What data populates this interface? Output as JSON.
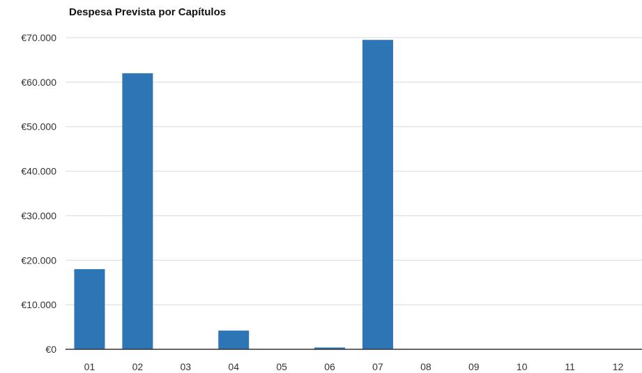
{
  "chart_data": {
    "type": "bar",
    "title": "Despesa Prevista por Capítulos",
    "xlabel": "",
    "ylabel": "",
    "categories": [
      "01",
      "02",
      "03",
      "04",
      "05",
      "06",
      "07",
      "08",
      "09",
      "10",
      "11",
      "12"
    ],
    "values": [
      18000,
      62000,
      0,
      4200,
      0,
      400,
      69500,
      0,
      0,
      0,
      0,
      0
    ],
    "ylim": [
      0,
      70000
    ],
    "y_ticks": [
      0,
      10000,
      20000,
      30000,
      40000,
      50000,
      60000,
      70000
    ],
    "y_tick_labels": [
      "€0",
      "€10.000",
      "€20.000",
      "€30.000",
      "€40.000",
      "€50.000",
      "€60.000",
      "€70.000"
    ],
    "grid": true,
    "legend": "none",
    "bar_color": "#2e75b6",
    "grid_color": "#d9d9d9",
    "axis_color": "#333333"
  }
}
